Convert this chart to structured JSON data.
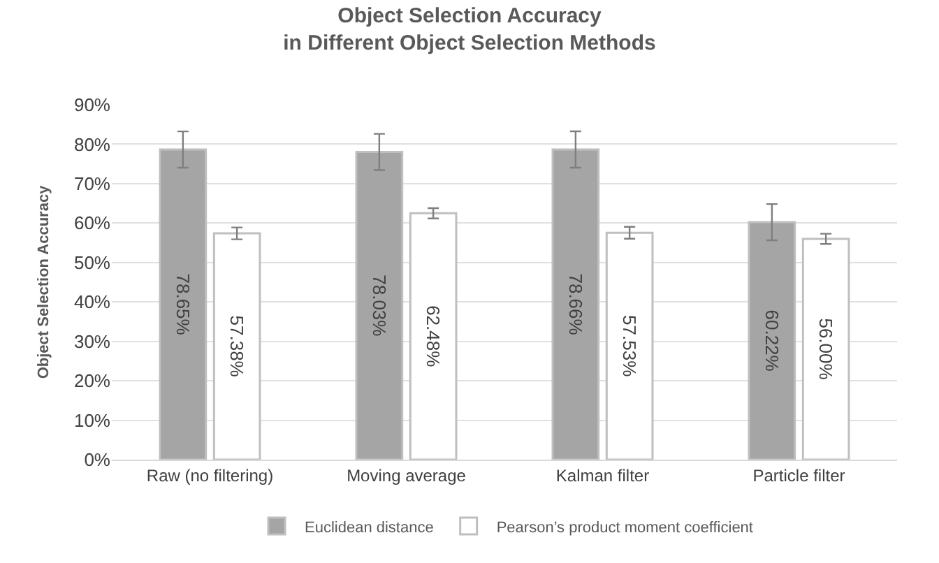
{
  "chart_data": {
    "type": "bar",
    "title": "Object Selection Accuracy\nin Different Object Selection Methods",
    "ylabel": "Object Selection Accuracy",
    "categories": [
      "Raw (no filtering)",
      "Moving average",
      "Kalman filter",
      "Particle filter"
    ],
    "series": [
      {
        "name": "Euclidean distance",
        "color": "#a5a5a5",
        "values": [
          78.65,
          78.03,
          78.66,
          60.22
        ],
        "errors": [
          4.6,
          4.6,
          4.6,
          4.6
        ],
        "value_labels": [
          "78.65%",
          "78.03%",
          "78.66%",
          "60.22%"
        ]
      },
      {
        "name": "Pearson’s product moment coefficient",
        "color": "#ffffff",
        "values": [
          57.38,
          62.48,
          57.53,
          56.0
        ],
        "errors": [
          1.5,
          1.3,
          1.5,
          1.3
        ],
        "value_labels": [
          "57.38%",
          "62.48%",
          "57.53%",
          "56.00%"
        ]
      }
    ],
    "ylim": [
      0,
      90
    ],
    "yticks": [
      {
        "value": 0,
        "label": "0%"
      },
      {
        "value": 10,
        "label": "10%"
      },
      {
        "value": 20,
        "label": "20%"
      },
      {
        "value": 30,
        "label": "30%"
      },
      {
        "value": 40,
        "label": "40%"
      },
      {
        "value": 50,
        "label": "50%"
      },
      {
        "value": 60,
        "label": "60%"
      },
      {
        "value": 70,
        "label": "70%"
      },
      {
        "value": 80,
        "label": "80%"
      },
      {
        "value": 90,
        "label": "90%"
      }
    ],
    "grid": "y",
    "legend": "bottom"
  }
}
